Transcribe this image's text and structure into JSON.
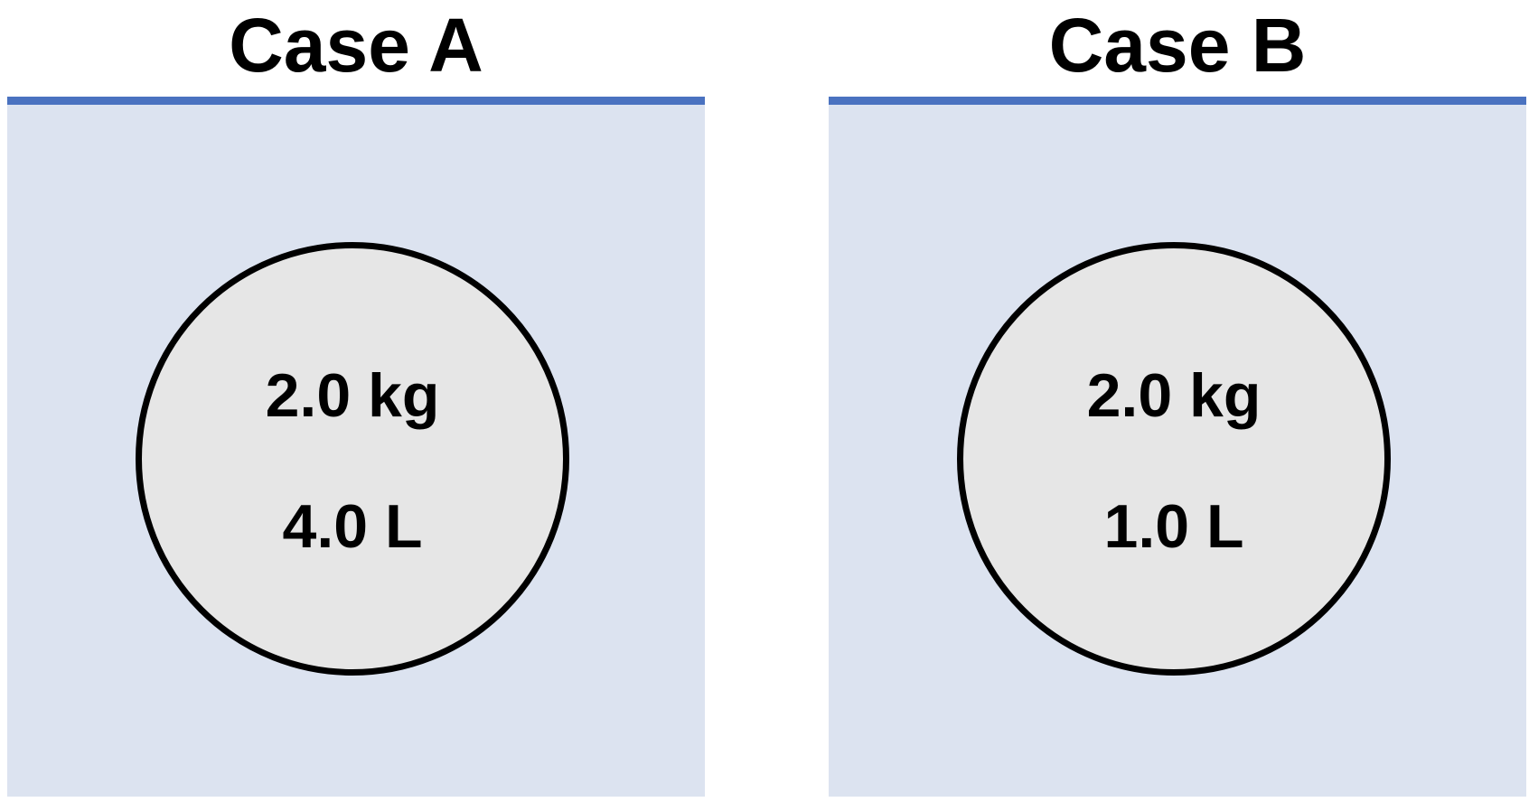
{
  "colors": {
    "liquid_fill": "#dce3f0",
    "surface_line": "#4a72c0",
    "object_fill": "#e6e6e6",
    "object_outline": "#000000",
    "text": "#000000"
  },
  "cases": [
    {
      "title": "Case A",
      "object": {
        "mass": "2.0 kg",
        "volume": "4.0 L"
      }
    },
    {
      "title": "Case B",
      "object": {
        "mass": "2.0 kg",
        "volume": "1.0 L"
      }
    }
  ]
}
